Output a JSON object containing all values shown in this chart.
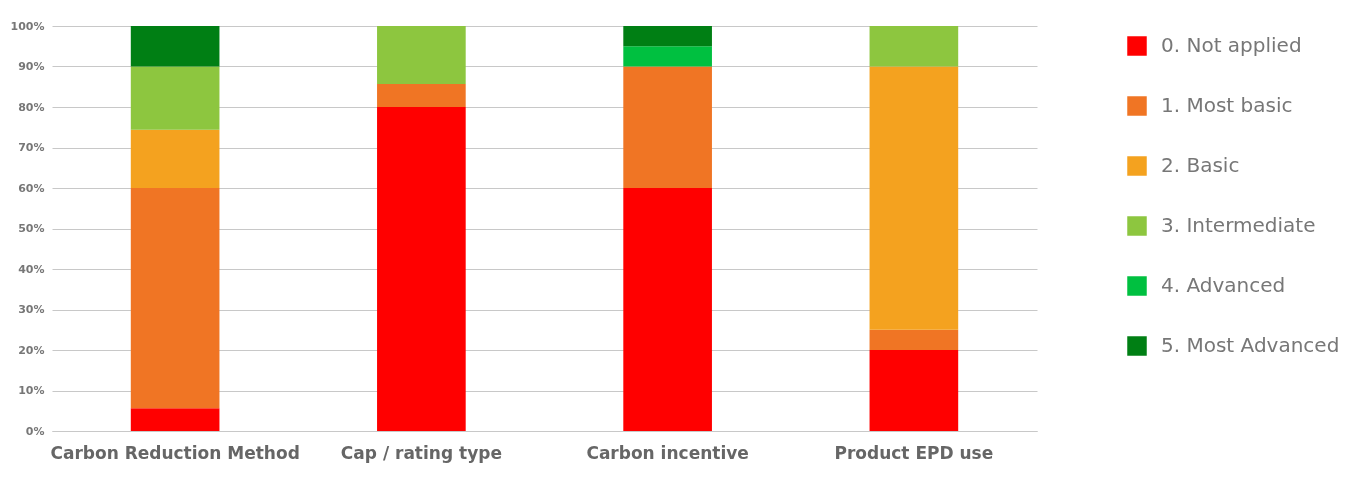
{
  "chart_data": {
    "type": "bar",
    "stacked": true,
    "categories": [
      "Carbon Reduction Method",
      "Cap / rating type",
      "Carbon incentive",
      "Product EPD use"
    ],
    "series": [
      {
        "name": "0. Not applied",
        "color": "#ff0000",
        "values": [
          5.6,
          80,
          60,
          20
        ]
      },
      {
        "name": "1. Most basic",
        "color": "#f07524",
        "values": [
          54.4,
          5.7,
          30,
          5
        ]
      },
      {
        "name": "2. Basic",
        "color": "#f4a21f",
        "values": [
          14.4,
          0,
          0,
          65
        ]
      },
      {
        "name": "3. Intermediate",
        "color": "#8dc63f",
        "values": [
          15.6,
          14.3,
          0,
          10
        ]
      },
      {
        "name": "4. Advanced",
        "color": "#00c040",
        "values": [
          0,
          0,
          5,
          0
        ]
      },
      {
        "name": "5. Most Advanced",
        "color": "#007f14",
        "values": [
          10,
          0,
          5,
          0
        ]
      }
    ],
    "ylim": [
      0,
      100
    ],
    "yticks": [
      {
        "value": 0,
        "label": "0%"
      },
      {
        "value": 10,
        "label": "10%"
      },
      {
        "value": 20,
        "label": "20%"
      },
      {
        "value": 30,
        "label": "30%"
      },
      {
        "value": 40,
        "label": "40%"
      },
      {
        "value": 50,
        "label": "50%"
      },
      {
        "value": 60,
        "label": "60%"
      },
      {
        "value": 70,
        "label": "70%"
      },
      {
        "value": 80,
        "label": "80%"
      },
      {
        "value": 90,
        "label": "90%"
      },
      {
        "value": 100,
        "label": "100%"
      }
    ],
    "grid": "y",
    "legend": "right"
  }
}
